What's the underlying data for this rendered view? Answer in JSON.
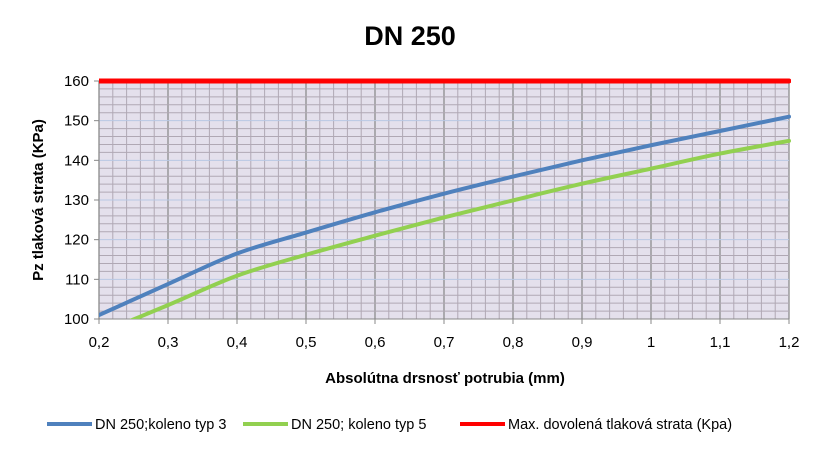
{
  "chart_data": {
    "type": "line",
    "title": "DN 250",
    "xlabel": "Absolútna drsnosť potrubia (mm)",
    "ylabel": "Pz  tlaková strata (KPa)",
    "xlim": [
      0.2,
      1.2
    ],
    "ylim": [
      100,
      160
    ],
    "x_ticks": [
      "0,2",
      "0,3",
      "0,4",
      "0,5",
      "0,6",
      "0,7",
      "0,8",
      "0,9",
      "1",
      "1,1",
      "1,2"
    ],
    "y_ticks": [
      "100",
      "110",
      "120",
      "130",
      "140",
      "150",
      "160"
    ],
    "grid": true,
    "legend_position": "bottom",
    "series": [
      {
        "name": "DN 250;koleno typ 3",
        "color": "#4f81bd",
        "x": [
          0.2,
          0.3,
          0.4,
          0.5,
          0.6,
          0.7,
          0.8,
          0.9,
          1.0,
          1.1,
          1.2
        ],
        "y": [
          101,
          108.8,
          116.5,
          121.8,
          126.9,
          131.6,
          135.9,
          140,
          143.8,
          147.4,
          151
        ]
      },
      {
        "name": "DN 250; koleno typ 5",
        "color": "#92d050",
        "x": [
          0.2,
          0.3,
          0.4,
          0.5,
          0.6,
          0.7,
          0.8,
          0.9,
          1.0,
          1.1,
          1.2
        ],
        "y": [
          96.3,
          103.5,
          110.9,
          116.2,
          121,
          125.6,
          129.9,
          134.1,
          137.9,
          141.7,
          144.9
        ]
      },
      {
        "name": "Max. dovolená tlaková strata (Kpa)",
        "color": "#ff0000",
        "x": [
          0.2,
          1.2
        ],
        "y": [
          160,
          160
        ]
      }
    ]
  }
}
